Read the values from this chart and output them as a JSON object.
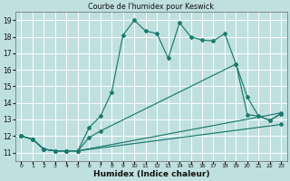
{
  "title": "Courbe de l'humidex pour Keswick",
  "xlabel": "Humidex (Indice chaleur)",
  "bg_color": "#c0e0e0",
  "grid_color": "#ffffff",
  "line_color": "#1a7a6e",
  "xlim": [
    -0.5,
    23.5
  ],
  "ylim": [
    10.5,
    19.5
  ],
  "xticks": [
    0,
    1,
    2,
    3,
    4,
    5,
    6,
    7,
    8,
    9,
    10,
    11,
    12,
    13,
    14,
    15,
    16,
    17,
    18,
    19,
    20,
    21,
    22,
    23
  ],
  "yticks": [
    11,
    12,
    13,
    14,
    15,
    16,
    17,
    18,
    19
  ],
  "series1_x": [
    0,
    1,
    2,
    3,
    4,
    5,
    6,
    7,
    8,
    9,
    10,
    11,
    12,
    13,
    14,
    15,
    16,
    17,
    18,
    19,
    20,
    21,
    22,
    23
  ],
  "series1_y": [
    12.0,
    11.8,
    11.2,
    11.1,
    11.1,
    11.1,
    12.5,
    13.2,
    14.65,
    18.1,
    19.0,
    18.35,
    18.2,
    16.7,
    18.85,
    18.0,
    17.8,
    17.75,
    18.2,
    16.35,
    14.35,
    13.2,
    12.95,
    13.35
  ],
  "series2_x": [
    0,
    1,
    2,
    3,
    4,
    5,
    6,
    7,
    19,
    20,
    21,
    22,
    23
  ],
  "series2_y": [
    12.0,
    11.8,
    11.2,
    11.1,
    11.1,
    11.1,
    11.9,
    12.3,
    16.35,
    13.3,
    13.2,
    12.95,
    13.35
  ],
  "series3_x": [
    0,
    1,
    2,
    3,
    4,
    5,
    23
  ],
  "series3_y": [
    12.0,
    11.8,
    11.2,
    11.1,
    11.1,
    11.1,
    13.4
  ],
  "series4_x": [
    0,
    1,
    2,
    3,
    4,
    5,
    23
  ],
  "series4_y": [
    12.0,
    11.8,
    11.2,
    11.1,
    11.1,
    11.1,
    12.7
  ]
}
